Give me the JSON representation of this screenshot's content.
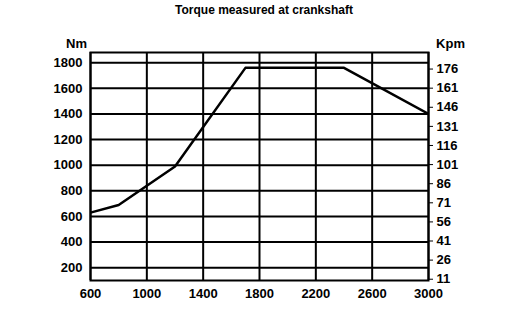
{
  "chart_data": {
    "type": "line",
    "title": "Torque measured at crankshaft",
    "ylabel": "Nm",
    "y2label": "Kpm",
    "x": [
      600,
      800,
      1200,
      1700,
      2400,
      3000
    ],
    "values": [
      630,
      690,
      990,
      1760,
      1760,
      1400
    ],
    "color": "#000000",
    "xlim": [
      600,
      3000
    ],
    "xticks": [
      600,
      1000,
      1400,
      1800,
      2200,
      2600,
      3000
    ],
    "ylim": [
      100,
      1880
    ],
    "yticks": [
      200,
      400,
      600,
      800,
      1000,
      1200,
      1400,
      1600,
      1800
    ],
    "y2lim": [
      10,
      189
    ],
    "y2ticks": [
      11,
      26,
      41,
      56,
      71,
      86,
      101,
      116,
      131,
      146,
      161,
      176
    ],
    "grid": true
  }
}
